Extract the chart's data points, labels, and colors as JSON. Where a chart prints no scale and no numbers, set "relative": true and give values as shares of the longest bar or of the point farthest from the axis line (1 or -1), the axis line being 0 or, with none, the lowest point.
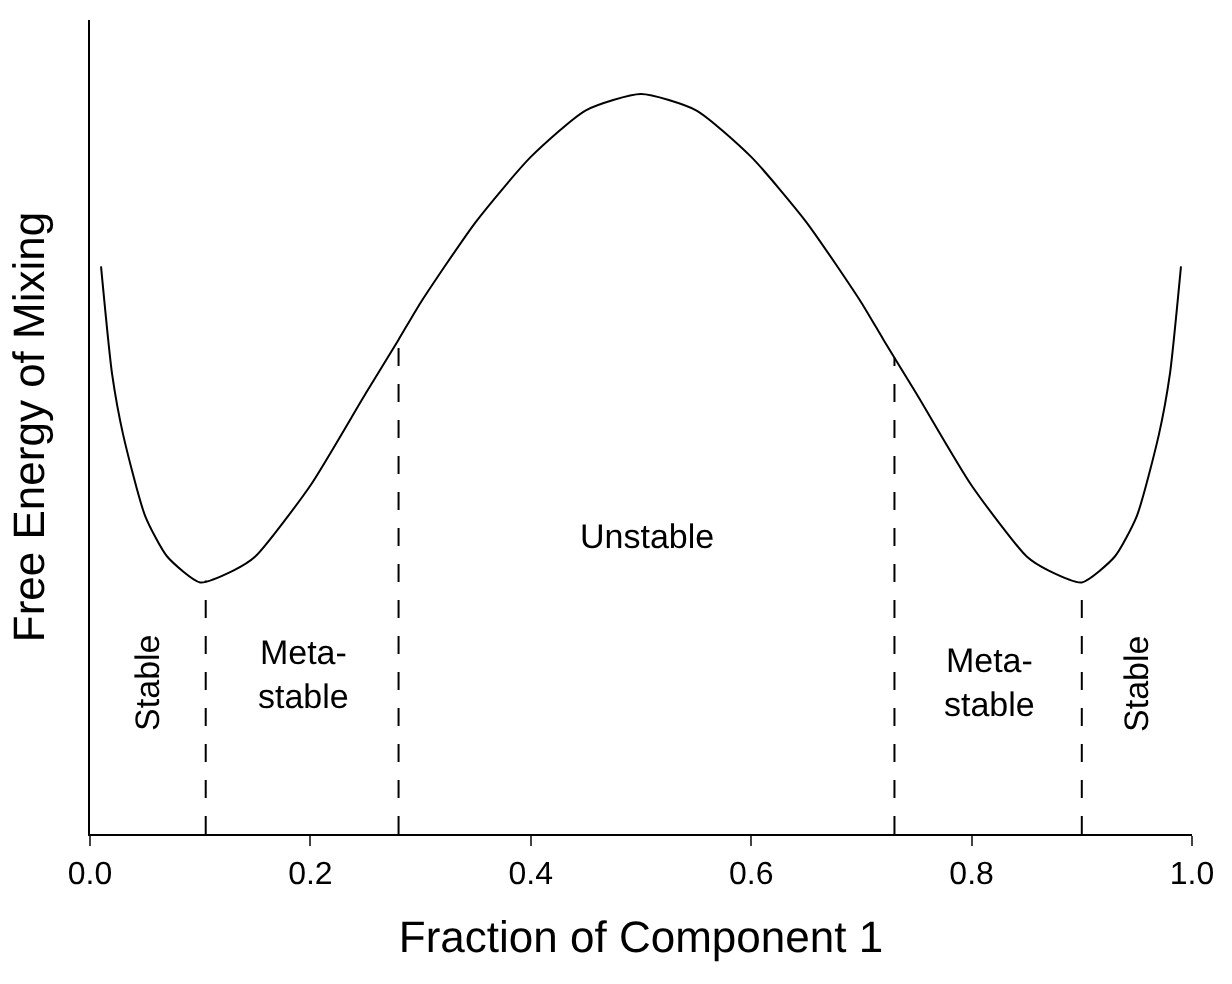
{
  "chart_data": {
    "type": "line",
    "relative": true,
    "xlabel": "Fraction of Component 1",
    "ylabel": "Free Energy of Mixing",
    "x": [
      0.01,
      0.02,
      0.03,
      0.05,
      0.07,
      0.1,
      0.13,
      0.15,
      0.2,
      0.25,
      0.28,
      0.3,
      0.35,
      0.4,
      0.45,
      0.5,
      0.55,
      0.6,
      0.65,
      0.7,
      0.72,
      0.75,
      0.8,
      0.85,
      0.87,
      0.9,
      0.93,
      0.95,
      0.97,
      0.98,
      0.99
    ],
    "series": [
      {
        "color": "#000000",
        "values": [
          0.767,
          0.622,
          0.54,
          0.43,
          0.375,
          0.34,
          0.356,
          0.375,
          0.471,
          0.595,
          0.668,
          0.718,
          0.827,
          0.915,
          0.978,
          1,
          0.978,
          0.915,
          0.827,
          0.718,
          0.668,
          0.595,
          0.471,
          0.375,
          0.356,
          0.34,
          0.375,
          0.43,
          0.54,
          0.622,
          0.767
        ]
      }
    ],
    "xlim": [
      0,
      1
    ],
    "xticks": [
      {
        "value": 0,
        "label": "0.0"
      },
      {
        "value": 0.2,
        "label": "0.2"
      },
      {
        "value": 0.4,
        "label": "0.4"
      },
      {
        "value": 0.6,
        "label": "0.6"
      },
      {
        "value": 0.8,
        "label": "0.8"
      },
      {
        "value": 1,
        "label": "1.0"
      }
    ],
    "ref_lines": [
      {
        "axis": "x",
        "value": 0.105,
        "line_style": "dashed",
        "color": "#000000"
      },
      {
        "axis": "x",
        "value": 0.28,
        "line_style": "dashed",
        "color": "#000000"
      },
      {
        "axis": "x",
        "value": 0.73,
        "line_style": "dashed",
        "color": "#000000"
      },
      {
        "axis": "x",
        "value": 0.9,
        "line_style": "dashed",
        "color": "#000000"
      }
    ],
    "annotations": [
      "Stable",
      "Meta-\nstable",
      "Unstable",
      "Meta-\nstable",
      "Stable"
    ],
    "marker": "none",
    "line_style": "solid"
  }
}
